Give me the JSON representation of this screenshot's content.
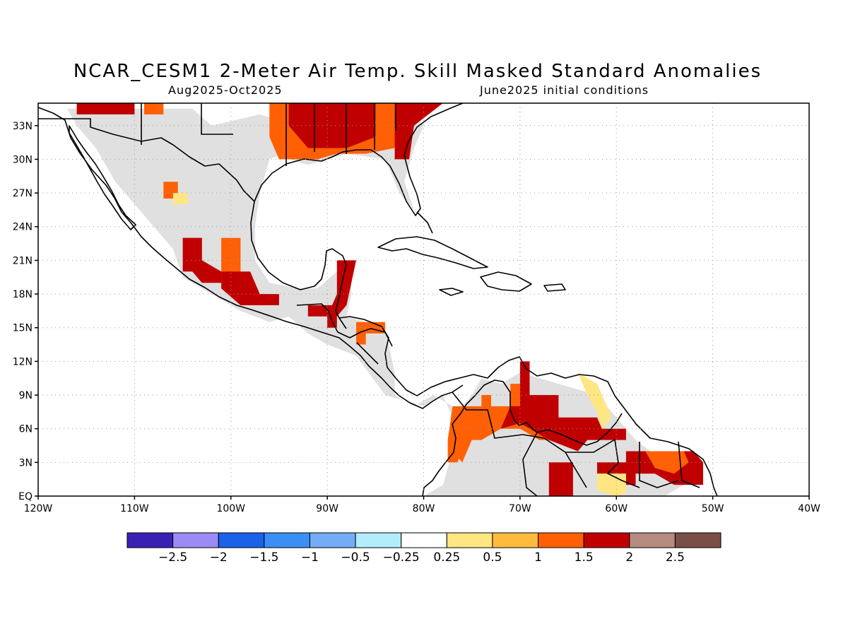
{
  "header": {
    "title": "NCAR_CESM1 2-Meter Air Temp. Skill Masked Standard Anomalies",
    "period": "Aug2025-Oct2025",
    "init": "June2025 initial conditions"
  },
  "map": {
    "lon_range": [
      -120,
      -40
    ],
    "lat_range": [
      0,
      35
    ],
    "lon_ticks": [
      {
        "value": -120,
        "label": "120W"
      },
      {
        "value": -110,
        "label": "110W"
      },
      {
        "value": -100,
        "label": "100W"
      },
      {
        "value": -90,
        "label": "90W"
      },
      {
        "value": -80,
        "label": "80W"
      },
      {
        "value": -70,
        "label": "70W"
      },
      {
        "value": -60,
        "label": "60W"
      },
      {
        "value": -50,
        "label": "50W"
      },
      {
        "value": -40,
        "label": "40W"
      }
    ],
    "lat_ticks": [
      {
        "value": 0,
        "label": "EQ"
      },
      {
        "value": 3,
        "label": "3N"
      },
      {
        "value": 6,
        "label": "6N"
      },
      {
        "value": 9,
        "label": "9N"
      },
      {
        "value": 12,
        "label": "12N"
      },
      {
        "value": 15,
        "label": "15N"
      },
      {
        "value": 18,
        "label": "18N"
      },
      {
        "value": 21,
        "label": "21N"
      },
      {
        "value": 24,
        "label": "24N"
      },
      {
        "value": 27,
        "label": "27N"
      },
      {
        "value": 30,
        "label": "30N"
      },
      {
        "value": 33,
        "label": "33N"
      }
    ],
    "grid": "dotted",
    "masked_color": "#e0e0e0",
    "anomaly_regions": [
      {
        "name": "southeast-us",
        "level": 2,
        "poly": [
          [
            -102,
            35
          ],
          [
            -87,
            35
          ],
          [
            -87,
            33
          ],
          [
            -85,
            33
          ],
          [
            -85,
            31
          ],
          [
            -83,
            31
          ],
          [
            -83,
            30
          ],
          [
            -81.5,
            30
          ],
          [
            -81,
            33
          ],
          [
            -78,
            35
          ],
          [
            -102,
            35
          ]
        ]
      },
      {
        "name": "south-us",
        "level": 1.5,
        "poly": [
          [
            -96,
            35
          ],
          [
            -83,
            35
          ],
          [
            -83,
            31
          ],
          [
            -86,
            30.5
          ],
          [
            -89,
            30.5
          ],
          [
            -91,
            30
          ],
          [
            -95,
            30
          ],
          [
            -96,
            32
          ],
          [
            -96,
            35
          ]
        ]
      },
      {
        "name": "central-us",
        "level": 2,
        "poly": [
          [
            -94,
            35
          ],
          [
            -85,
            35
          ],
          [
            -85,
            32
          ],
          [
            -88,
            31
          ],
          [
            -92,
            31
          ],
          [
            -94,
            33
          ],
          [
            -94,
            35
          ]
        ]
      },
      {
        "name": "north-mexico-top",
        "level": 2,
        "poly": [
          [
            -116,
            35
          ],
          [
            -110,
            35
          ],
          [
            -110,
            34
          ],
          [
            -116,
            34
          ],
          [
            -116,
            35
          ]
        ]
      },
      {
        "name": "north-mexico-top-b",
        "level": 1.5,
        "poly": [
          [
            -109,
            35
          ],
          [
            -107,
            35
          ],
          [
            -107,
            34
          ],
          [
            -109,
            34
          ],
          [
            -109,
            35
          ]
        ]
      },
      {
        "name": "chihuahua",
        "level": 1.5,
        "poly": [
          [
            -107,
            28
          ],
          [
            -105.5,
            28
          ],
          [
            -105.5,
            26.5
          ],
          [
            -107,
            26.5
          ],
          [
            -107,
            28
          ]
        ]
      },
      {
        "name": "chihuahua-b",
        "level": 0.5,
        "poly": [
          [
            -106,
            27
          ],
          [
            -104.5,
            27
          ],
          [
            -104.5,
            26
          ],
          [
            -106,
            26
          ],
          [
            -106,
            27
          ]
        ]
      },
      {
        "name": "central-mexico-w",
        "level": 2,
        "poly": [
          [
            -105,
            23
          ],
          [
            -103,
            23
          ],
          [
            -103,
            21
          ],
          [
            -101,
            20
          ],
          [
            -101,
            19
          ],
          [
            -103,
            19
          ],
          [
            -104,
            20
          ],
          [
            -105,
            20
          ],
          [
            -105,
            23
          ]
        ]
      },
      {
        "name": "central-mexico-e",
        "level": 1.5,
        "poly": [
          [
            -101,
            23
          ],
          [
            -99,
            23
          ],
          [
            -99,
            20
          ],
          [
            -98,
            18
          ],
          [
            -96,
            18
          ],
          [
            -96,
            17
          ],
          [
            -99,
            17
          ],
          [
            -101,
            19
          ],
          [
            -101,
            23
          ]
        ]
      },
      {
        "name": "central-mexico-s",
        "level": 2,
        "poly": [
          [
            -101,
            20
          ],
          [
            -98,
            20
          ],
          [
            -97,
            18
          ],
          [
            -95,
            18
          ],
          [
            -95,
            17
          ],
          [
            -99,
            17
          ],
          [
            -101,
            18.5
          ],
          [
            -101,
            20
          ]
        ]
      },
      {
        "name": "yucatan",
        "level": 2,
        "poly": [
          [
            -89,
            21
          ],
          [
            -87,
            21
          ],
          [
            -87.5,
            19
          ],
          [
            -88,
            17
          ],
          [
            -89,
            16
          ],
          [
            -90,
            16
          ],
          [
            -89,
            18
          ],
          [
            -89,
            21
          ]
        ]
      },
      {
        "name": "guatemala",
        "level": 2,
        "poly": [
          [
            -92,
            17
          ],
          [
            -89,
            17
          ],
          [
            -89,
            15
          ],
          [
            -90,
            15
          ],
          [
            -90,
            16
          ],
          [
            -92,
            16
          ],
          [
            -92,
            17
          ]
        ]
      },
      {
        "name": "honduras",
        "level": 1.5,
        "poly": [
          [
            -87,
            15.5
          ],
          [
            -84,
            15.5
          ],
          [
            -84,
            14.5
          ],
          [
            -86,
            14.5
          ],
          [
            -86,
            13.5
          ],
          [
            -87,
            13.5
          ],
          [
            -87,
            15.5
          ]
        ]
      },
      {
        "name": "colombia-coast",
        "level": 1.5,
        "poly": [
          [
            -76,
            8
          ],
          [
            -74,
            8
          ],
          [
            -74,
            9
          ],
          [
            -73,
            9
          ],
          [
            -73,
            8
          ],
          [
            -71,
            8
          ],
          [
            -71,
            10
          ],
          [
            -69,
            10
          ],
          [
            -69,
            7
          ],
          [
            -67,
            6
          ],
          [
            -65,
            6
          ],
          [
            -65,
            5
          ],
          [
            -68,
            5
          ],
          [
            -70,
            6
          ],
          [
            -72,
            6
          ],
          [
            -74,
            5
          ],
          [
            -75,
            5
          ],
          [
            -76,
            3
          ],
          [
            -77,
            4
          ],
          [
            -77,
            7
          ],
          [
            -76,
            8
          ]
        ]
      },
      {
        "name": "venezuela",
        "level": 2,
        "poly": [
          [
            -70,
            12
          ],
          [
            -69,
            12
          ],
          [
            -69,
            9
          ],
          [
            -66,
            9
          ],
          [
            -66,
            7
          ],
          [
            -62,
            7
          ],
          [
            -61.5,
            6
          ],
          [
            -59,
            6
          ],
          [
            -59,
            5
          ],
          [
            -63,
            5
          ],
          [
            -64,
            4
          ],
          [
            -67,
            5
          ],
          [
            -70,
            6.5
          ],
          [
            -72,
            6
          ],
          [
            -71,
            8
          ],
          [
            -70,
            8
          ],
          [
            -70,
            12
          ]
        ]
      },
      {
        "name": "venezuela-e-yellow",
        "level": 0.5,
        "poly": [
          [
            -64,
            11
          ],
          [
            -62,
            10
          ],
          [
            -61,
            8
          ],
          [
            -60.5,
            7
          ],
          [
            -61.5,
            6
          ],
          [
            -62,
            7.5
          ],
          [
            -63,
            9
          ],
          [
            -64,
            11
          ]
        ]
      },
      {
        "name": "colombia-w",
        "level": 1.5,
        "poly": [
          [
            -77,
            8
          ],
          [
            -75.5,
            8
          ],
          [
            -75.5,
            5
          ],
          [
            -76.5,
            3
          ],
          [
            -77.5,
            3
          ],
          [
            -77.5,
            5
          ],
          [
            -77,
            8
          ]
        ]
      },
      {
        "name": "amazon-w",
        "level": 2,
        "poly": [
          [
            -67,
            3
          ],
          [
            -64.5,
            3
          ],
          [
            -64.5,
            0
          ],
          [
            -67,
            0
          ],
          [
            -67,
            3
          ]
        ]
      },
      {
        "name": "guyana-s",
        "level": 2,
        "poly": [
          [
            -62,
            3
          ],
          [
            -59,
            3
          ],
          [
            -58,
            2
          ],
          [
            -58,
            1
          ],
          [
            -59,
            1
          ],
          [
            -59,
            2
          ],
          [
            -62,
            2
          ],
          [
            -62,
            3
          ]
        ]
      },
      {
        "name": "guyana-yellow",
        "level": 0.5,
        "poly": [
          [
            -62,
            2
          ],
          [
            -59,
            2
          ],
          [
            -59,
            0.3
          ],
          [
            -60,
            0
          ],
          [
            -62,
            0.5
          ],
          [
            -62,
            2
          ]
        ]
      },
      {
        "name": "suriname",
        "level": 2,
        "poly": [
          [
            -59,
            4
          ],
          [
            -52,
            4
          ],
          [
            -51,
            3
          ],
          [
            -51,
            1
          ],
          [
            -54,
            1
          ],
          [
            -56,
            2
          ],
          [
            -59,
            2
          ],
          [
            -59,
            4
          ]
        ]
      },
      {
        "name": "suriname-orange",
        "level": 1.5,
        "poly": [
          [
            -57,
            4
          ],
          [
            -53,
            4
          ],
          [
            -52.5,
            3
          ],
          [
            -54,
            2
          ],
          [
            -56,
            2.5
          ],
          [
            -57,
            4
          ]
        ]
      }
    ],
    "masked_regions": [
      [
        [
          -117,
          34.5
        ],
        [
          -104,
          34.5
        ],
        [
          -102,
          33
        ],
        [
          -97,
          34
        ],
        [
          -93,
          33
        ],
        [
          -93,
          31
        ],
        [
          -96,
          30
        ],
        [
          -97,
          27
        ],
        [
          -97.5,
          24
        ],
        [
          -97.5,
          21
        ],
        [
          -96,
          19
        ],
        [
          -93,
          18.5
        ],
        [
          -91,
          18.5
        ],
        [
          -89,
          20
        ],
        [
          -87.5,
          21
        ],
        [
          -87.5,
          18
        ],
        [
          -88,
          16
        ],
        [
          -86,
          15.5
        ],
        [
          -84,
          15
        ],
        [
          -83,
          11
        ],
        [
          -83,
          9
        ],
        [
          -81,
          8
        ],
        [
          -79,
          9
        ],
        [
          -77,
          8
        ],
        [
          -77,
          4
        ],
        [
          -78,
          1
        ],
        [
          -80,
          0
        ],
        [
          -55,
          0
        ],
        [
          -52,
          1.5
        ],
        [
          -55,
          3
        ],
        [
          -58,
          5
        ],
        [
          -60,
          7
        ],
        [
          -62,
          9
        ],
        [
          -66,
          10
        ],
        [
          -70,
          11
        ],
        [
          -72,
          10
        ],
        [
          -74,
          10.5
        ],
        [
          -75,
          9
        ],
        [
          -77,
          7
        ],
        [
          -78,
          9
        ],
        [
          -80,
          8
        ],
        [
          -84,
          9
        ],
        [
          -87,
          12.5
        ],
        [
          -90,
          13.5
        ],
        [
          -92,
          14.5
        ],
        [
          -94,
          16
        ],
        [
          -96,
          15.5
        ],
        [
          -99,
          16.5
        ],
        [
          -102,
          18
        ],
        [
          -105,
          19.5
        ],
        [
          -106,
          22
        ],
        [
          -108,
          24
        ],
        [
          -110,
          26
        ],
        [
          -112,
          28
        ],
        [
          -114,
          31
        ],
        [
          -116,
          33
        ],
        [
          -117,
          34.5
        ]
      ],
      [
        [
          -94,
          35
        ],
        [
          -82,
          35
        ],
        [
          -80,
          33
        ],
        [
          -81,
          31
        ],
        [
          -82,
          28
        ],
        [
          -81,
          25.5
        ],
        [
          -82.5,
          27
        ],
        [
          -84,
          30
        ],
        [
          -88,
          30.5
        ],
        [
          -92,
          29.5
        ],
        [
          -94,
          30
        ],
        [
          -94,
          35
        ]
      ]
    ]
  },
  "colorbar": {
    "boxes": [
      "#3b20b4",
      "#9b8bf4",
      "#1c62e8",
      "#3a8ff5",
      "#74adf5",
      "#b2edfc",
      "#ffffff",
      "#ffe682",
      "#ffbc3c",
      "#ff6006",
      "#c00000",
      "#b58a7f",
      "#7a4f45"
    ],
    "labels": [
      "-2.5",
      "-2",
      "-1.5",
      "-1",
      "-0.5",
      "-0.25",
      "0.25",
      "0.5",
      "1",
      "1.5",
      "2",
      "2.5"
    ]
  }
}
